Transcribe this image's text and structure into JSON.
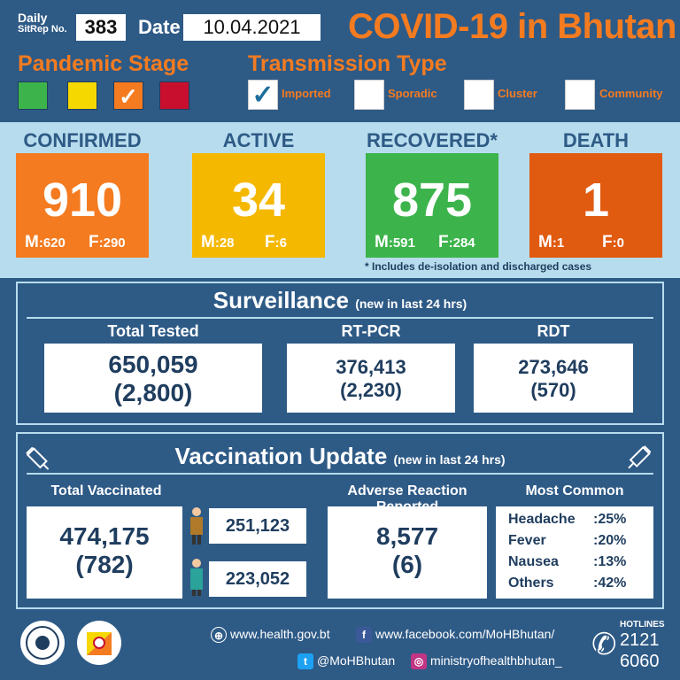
{
  "header": {
    "sitrep_label_line1": "Daily",
    "sitrep_label_line2": "SitRep No.",
    "sitrep_no": "383",
    "date_label": "Date",
    "date": "10.04.2021",
    "title": "COVID-19 in Bhutan"
  },
  "pandemic_stage": {
    "title": "Pandemic Stage",
    "colors": [
      "#3cb44b",
      "#f5d800",
      "#f47b20",
      "#c8102e"
    ],
    "checked_index": 2
  },
  "transmission": {
    "title": "Transmission Type",
    "types": [
      {
        "label": "Imported",
        "checked": true
      },
      {
        "label": "Sporadic",
        "checked": false
      },
      {
        "label": "Cluster",
        "checked": false
      },
      {
        "label": "Community",
        "checked": false
      }
    ]
  },
  "stats": [
    {
      "label": "CONFIRMED",
      "value": "910",
      "m_label": "M",
      "m": ":620",
      "f_label": "F",
      "f": ":290",
      "color": "#f47b20"
    },
    {
      "label": "ACTIVE",
      "value": "34",
      "m_label": "M",
      "m": ":28",
      "f_label": "F",
      "f": ":6",
      "color": "#f5b800"
    },
    {
      "label": "RECOVERED*",
      "value": "875",
      "m_label": "M",
      "m": ":591",
      "f_label": "F",
      "f": ":284",
      "color": "#3cb44b"
    },
    {
      "label": "DEATH",
      "value": "1",
      "m_label": "M",
      "m": ":1",
      "f_label": "F",
      "f": ":0",
      "color": "#e05a10"
    }
  ],
  "footnote": "* Includes de-isolation and discharged cases",
  "surveillance": {
    "title": "Surveillance",
    "subtitle": "(new in last 24 hrs)",
    "total_tested": {
      "label": "Total Tested",
      "value": "650,059",
      "new": "(2,800)"
    },
    "rtpcr": {
      "label": "RT-PCR",
      "value": "376,413",
      "new": "(2,230)"
    },
    "rdt": {
      "label": "RDT",
      "value": "273,646",
      "new": "(570)"
    }
  },
  "vaccination": {
    "title": "Vaccination Update",
    "subtitle": "(new in last 24 hrs)",
    "total_label": "Total Vaccinated",
    "total": "474,175",
    "total_new": "(782)",
    "male": "251,123",
    "female": "223,052",
    "adverse_label": "Adverse Reaction Reported",
    "adverse": "8,577",
    "adverse_new": "(6)",
    "common_label": "Most Common",
    "common": [
      {
        "name": "Headache",
        "pct": ":25%"
      },
      {
        "name": "Fever",
        "pct": ":20%"
      },
      {
        "name": "Nausea",
        "pct": ":13%"
      },
      {
        "name": "Others",
        "pct": ":42%"
      }
    ]
  },
  "footer": {
    "website": "www.health.gov.bt",
    "facebook": "www.facebook.com/MoHBhutan/",
    "twitter": "@MoHBhutan",
    "instagram": "ministryofhealthbhutan_",
    "hotlines_label": "HOTLINES",
    "hotline1": "2121",
    "hotline2": "6060"
  }
}
